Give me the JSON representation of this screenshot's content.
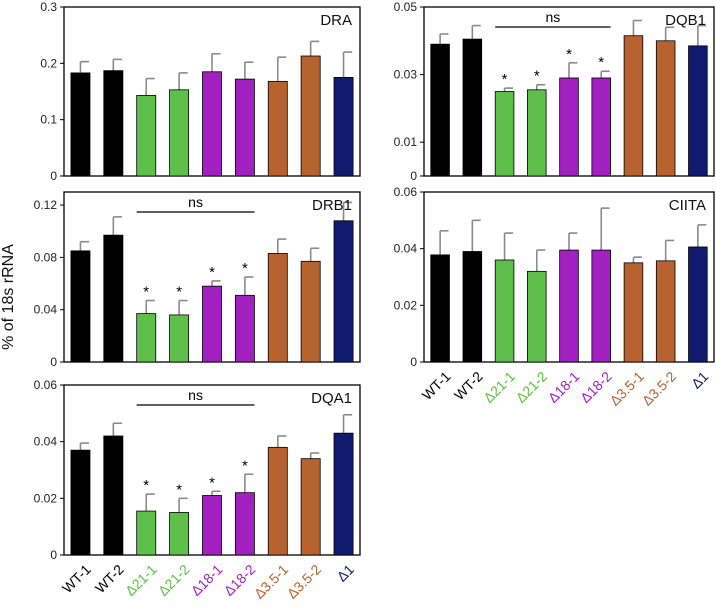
{
  "figure": {
    "ylabel": "% of 18s rRNA",
    "ns_label": "ns",
    "sig_marker": "*"
  },
  "categories": [
    "WT-1",
    "WT-2",
    "Δ21-1",
    "Δ21-2",
    "Δ18-1",
    "Δ18-2",
    "Δ3.5-1",
    "Δ3.5-2",
    "Δ1"
  ],
  "colors": {
    "wt": "#000000",
    "d21_fill": "#5ec04a",
    "d21_label": "#58c23e",
    "d18": "#a21fc0",
    "d35": "#b8622f",
    "d1": "#101a6e",
    "error_bar": "#8a8a8a"
  },
  "chart_data": [
    {
      "type": "bar",
      "title": "DRA",
      "categories": [
        "WT-1",
        "WT-2",
        "Δ21-1",
        "Δ21-2",
        "Δ18-1",
        "Δ18-2",
        "Δ3.5-1",
        "Δ3.5-2",
        "Δ1"
      ],
      "values": [
        0.183,
        0.187,
        0.143,
        0.153,
        0.185,
        0.172,
        0.168,
        0.213,
        0.175
      ],
      "errors": [
        0.02,
        0.02,
        0.03,
        0.03,
        0.032,
        0.03,
        0.043,
        0.026,
        0.045
      ],
      "significant": [
        false,
        false,
        false,
        false,
        false,
        false,
        false,
        false,
        false
      ],
      "ylim": [
        0,
        0.3
      ],
      "yticks": [
        "0",
        "0.1",
        "0.2",
        "0.3"
      ],
      "ns_bracket": null
    },
    {
      "type": "bar",
      "title": "DRB1",
      "categories": [
        "WT-1",
        "WT-2",
        "Δ21-1",
        "Δ21-2",
        "Δ18-1",
        "Δ18-2",
        "Δ3.5-1",
        "Δ3.5-2",
        "Δ1"
      ],
      "values": [
        0.085,
        0.097,
        0.037,
        0.036,
        0.058,
        0.051,
        0.083,
        0.077,
        0.108
      ],
      "errors": [
        0.007,
        0.014,
        0.01,
        0.011,
        0.004,
        0.014,
        0.011,
        0.01,
        0.014
      ],
      "significant": [
        false,
        false,
        true,
        true,
        true,
        true,
        false,
        false,
        false
      ],
      "ylim": [
        0,
        0.13
      ],
      "yticks": [
        "0",
        "0.04",
        "0.08",
        "0.12"
      ],
      "ns_bracket": [
        2,
        5
      ]
    },
    {
      "type": "bar",
      "title": "DQA1",
      "categories": [
        "WT-1",
        "WT-2",
        "Δ21-1",
        "Δ21-2",
        "Δ18-1",
        "Δ18-2",
        "Δ3.5-1",
        "Δ3.5-2",
        "Δ1"
      ],
      "values": [
        0.037,
        0.042,
        0.0155,
        0.015,
        0.021,
        0.022,
        0.038,
        0.034,
        0.043
      ],
      "errors": [
        0.0025,
        0.0045,
        0.006,
        0.005,
        0.0015,
        0.0065,
        0.004,
        0.002,
        0.0065
      ],
      "significant": [
        false,
        false,
        true,
        true,
        true,
        true,
        false,
        false,
        false
      ],
      "ylim": [
        0,
        0.06
      ],
      "yticks": [
        "0",
        "0.02",
        "0.04",
        "0.06"
      ],
      "ns_bracket": [
        2,
        5
      ]
    },
    {
      "type": "bar",
      "title": "DQB1",
      "categories": [
        "WT-1",
        "WT-2",
        "Δ21-1",
        "Δ21-2",
        "Δ18-1",
        "Δ18-2",
        "Δ3.5-1",
        "Δ3.5-2",
        "Δ1"
      ],
      "values": [
        0.039,
        0.0405,
        0.025,
        0.0255,
        0.029,
        0.029,
        0.0415,
        0.04,
        0.0385
      ],
      "errors": [
        0.003,
        0.004,
        0.001,
        0.0015,
        0.0045,
        0.002,
        0.0045,
        0.004,
        0.006
      ],
      "significant": [
        false,
        false,
        true,
        true,
        true,
        true,
        false,
        false,
        false
      ],
      "ylim": [
        0,
        0.05
      ],
      "yticks": [
        "0",
        "0.01",
        "0.03",
        "0.05"
      ],
      "ns_bracket": [
        2,
        5
      ]
    },
    {
      "type": "bar",
      "title": "CIITA",
      "categories": [
        "WT-1",
        "WT-2",
        "Δ21-1",
        "Δ21-2",
        "Δ18-1",
        "Δ18-2",
        "Δ3.5-1",
        "Δ3.5-2",
        "Δ1"
      ],
      "values": [
        0.0378,
        0.039,
        0.036,
        0.032,
        0.0395,
        0.0395,
        0.035,
        0.0357,
        0.0406
      ],
      "errors": [
        0.0085,
        0.011,
        0.0095,
        0.0075,
        0.006,
        0.0148,
        0.002,
        0.0072,
        0.0078
      ],
      "significant": [
        false,
        false,
        false,
        false,
        false,
        false,
        false,
        false,
        false
      ],
      "ylim": [
        0,
        0.06
      ],
      "yticks": [
        "0",
        "0.02",
        "0.04",
        "0.06"
      ],
      "ns_bracket": null
    }
  ]
}
